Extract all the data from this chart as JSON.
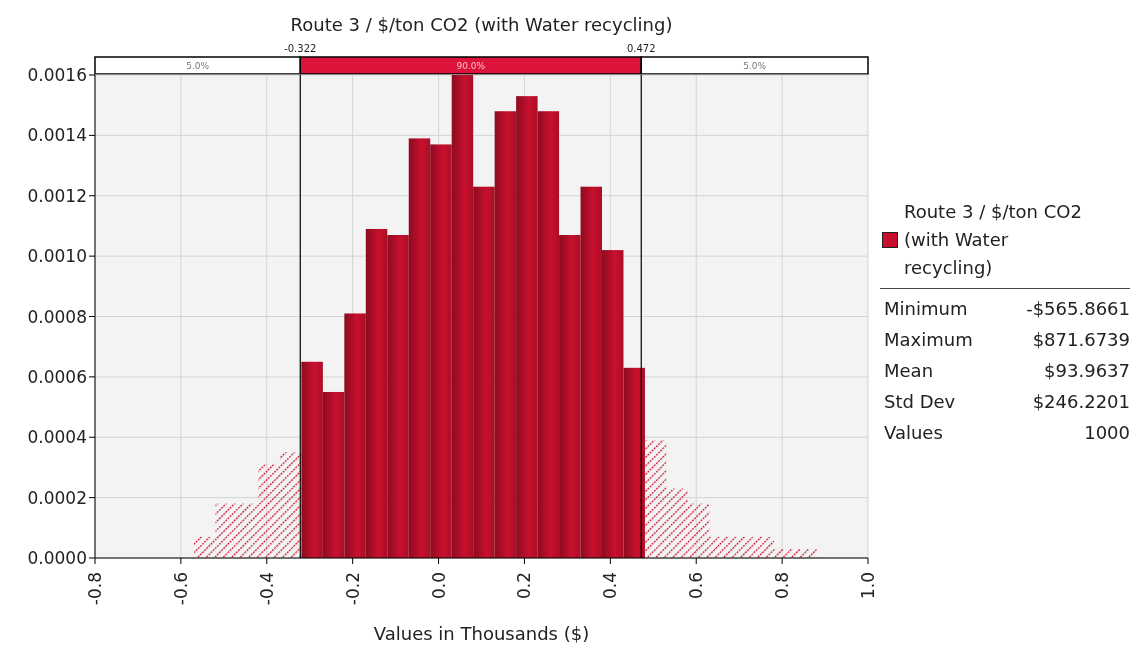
{
  "chart_data": {
    "type": "histogram",
    "title": "Route 3 / $/ton CO2 (with Water recycling)",
    "xlabel": "Values in Thousands ($)",
    "bins": [
      -0.57,
      -0.52,
      -0.47,
      -0.42,
      -0.37,
      -0.32,
      -0.27,
      -0.22,
      -0.17,
      -0.12,
      -0.07,
      -0.02,
      0.03,
      0.08,
      0.13,
      0.18,
      0.23,
      0.28,
      0.33,
      0.38,
      0.43,
      0.48,
      0.53,
      0.58,
      0.63,
      0.68,
      0.73,
      0.78,
      0.83,
      0.88
    ],
    "series": [
      {
        "name": "Route 3 / $/ton CO2 (with Water recycling)",
        "color": "#c8102e",
        "values": [
          7e-05,
          0.00018,
          0.00018,
          0.00031,
          0.00035,
          0.00065,
          0.00055,
          0.00081,
          0.00109,
          0.00107,
          0.00139,
          0.00137,
          0.0016,
          0.00123,
          0.00148,
          0.00153,
          0.00148,
          0.00107,
          0.00123,
          0.00102,
          0.00063,
          0.00039,
          0.00023,
          0.00018,
          7e-05,
          7e-05,
          7e-05,
          3e-05,
          3e-05
        ]
      }
    ],
    "xlim": [
      -0.8,
      1.0
    ],
    "xticks": [
      {
        "value": -0.8,
        "label": "-0.8"
      },
      {
        "value": -0.6,
        "label": "-0.6"
      },
      {
        "value": -0.4,
        "label": "-0.4"
      },
      {
        "value": -0.2,
        "label": "-0.2"
      },
      {
        "value": 0,
        "label": "0.0"
      },
      {
        "value": 0.2,
        "label": "0.2"
      },
      {
        "value": 0.4,
        "label": "0.4"
      },
      {
        "value": 0.6,
        "label": "0.6"
      },
      {
        "value": 0.8,
        "label": "0.8"
      },
      {
        "value": 1.0,
        "label": "1.0"
      }
    ],
    "ylim": [
      0,
      0.0016
    ],
    "yticks": [
      {
        "value": 0,
        "label": "0.0000"
      },
      {
        "value": 0.0002,
        "label": "0.0002"
      },
      {
        "value": 0.0004,
        "label": "0.0004"
      },
      {
        "value": 0.0006,
        "label": "0.0006"
      },
      {
        "value": 0.0008,
        "label": "0.0008"
      },
      {
        "value": 0.001,
        "label": "0.0010"
      },
      {
        "value": 0.0012,
        "label": "0.0012"
      },
      {
        "value": 0.0014,
        "label": "0.0014"
      },
      {
        "value": 0.0016,
        "label": "0.0016"
      }
    ],
    "grid": true,
    "legend": "right",
    "ref_lines": [
      {
        "axis": "x",
        "value": -0.322,
        "label": "-0.322",
        "color": "#000000"
      },
      {
        "axis": "x",
        "value": 0.472,
        "label": "0.472",
        "color": "#000000"
      }
    ],
    "annotations": [
      "5.0%",
      "90.0%",
      "5.0%",
      "Minimum -$565.8661",
      "Maximum $871.6739",
      "Mean $93.9637",
      "Std Dev $246.2201",
      "Values 1000"
    ]
  }
}
